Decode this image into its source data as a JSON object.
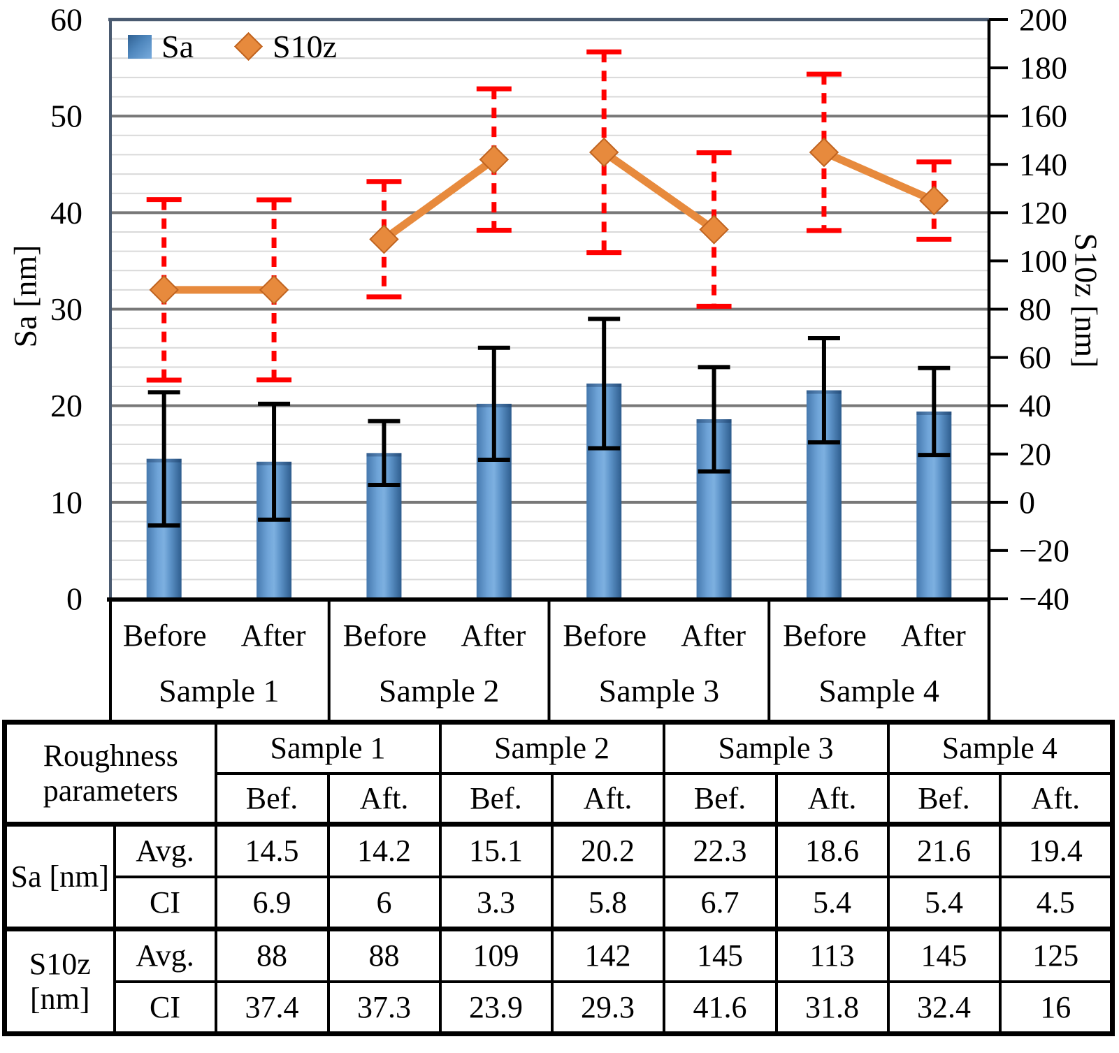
{
  "figure": {
    "legend": [
      {
        "label": "Sa",
        "marker": "square",
        "color": "#4f87bd"
      },
      {
        "label": "S10z",
        "marker": "diamond",
        "color": "#e78a3d"
      }
    ],
    "left_axis_title": "Sa [nm]",
    "right_axis_title": "S10z [nm]"
  },
  "chart_data": {
    "type": "bar+line dual-axis",
    "groups": [
      "Sample 1",
      "Sample 2",
      "Sample 3",
      "Sample 4"
    ],
    "conditions": [
      "Before",
      "After"
    ],
    "left_axis": {
      "label": "Sa [nm]",
      "min": 0,
      "max": 60,
      "major_step": 10,
      "minor_step": 2,
      "ticks": [
        0,
        10,
        20,
        30,
        40,
        50,
        60
      ]
    },
    "right_axis": {
      "label": "S10z [nm]",
      "min": -40,
      "max": 200,
      "tick_step": 20,
      "ticks": [
        200,
        180,
        160,
        140,
        120,
        100,
        80,
        60,
        40,
        20,
        0,
        -20,
        -40
      ]
    },
    "series": [
      {
        "name": "Sa",
        "type": "bar",
        "axis": "left",
        "color": "#4f87bd",
        "values": [
          14.5,
          14.2,
          15.1,
          20.2,
          22.3,
          18.6,
          21.6,
          19.4
        ],
        "ci": [
          6.9,
          6,
          3.3,
          5.8,
          6.7,
          5.4,
          5.4,
          4.5
        ],
        "error_bar_color": "#000000"
      },
      {
        "name": "S10z",
        "type": "line",
        "axis": "right",
        "color": "#e78a3d",
        "values": [
          88,
          88,
          109,
          142,
          145,
          113,
          145,
          125
        ],
        "ci": [
          37.4,
          37.3,
          23.9,
          29.3,
          41.6,
          31.8,
          32.4,
          16
        ],
        "error_bar_color": "#ff0000",
        "error_bar_style": "dashed",
        "connect_within_group_only": true
      }
    ],
    "grid": {
      "horizontal_only": true,
      "major_color": "#787878",
      "minor_color": "#d9d9d9"
    },
    "legend_position": "top-left-inside"
  },
  "table": {
    "corner_header": "Roughness parameters",
    "sample_headers": [
      "Sample 1",
      "Sample 2",
      "Sample 3",
      "Sample 4"
    ],
    "sub_headers": [
      "Bef.",
      "Aft."
    ],
    "row_groups": [
      {
        "label": "Sa [nm]",
        "rows": [
          {
            "label": "Avg.",
            "values": [
              "14.5",
              "14.2",
              "15.1",
              "20.2",
              "22.3",
              "18.6",
              "21.6",
              "19.4"
            ]
          },
          {
            "label": "CI",
            "values": [
              "6.9",
              "6",
              "3.3",
              "5.8",
              "6.7",
              "5.4",
              "5.4",
              "4.5"
            ]
          }
        ]
      },
      {
        "label": "S10z [nm]",
        "rows": [
          {
            "label": "Avg.",
            "values": [
              "88",
              "88",
              "109",
              "142",
              "145",
              "113",
              "145",
              "125"
            ]
          },
          {
            "label": "CI",
            "values": [
              "37.4",
              "37.3",
              "23.9",
              "29.3",
              "41.6",
              "31.8",
              "32.4",
              "16"
            ]
          }
        ]
      }
    ]
  }
}
